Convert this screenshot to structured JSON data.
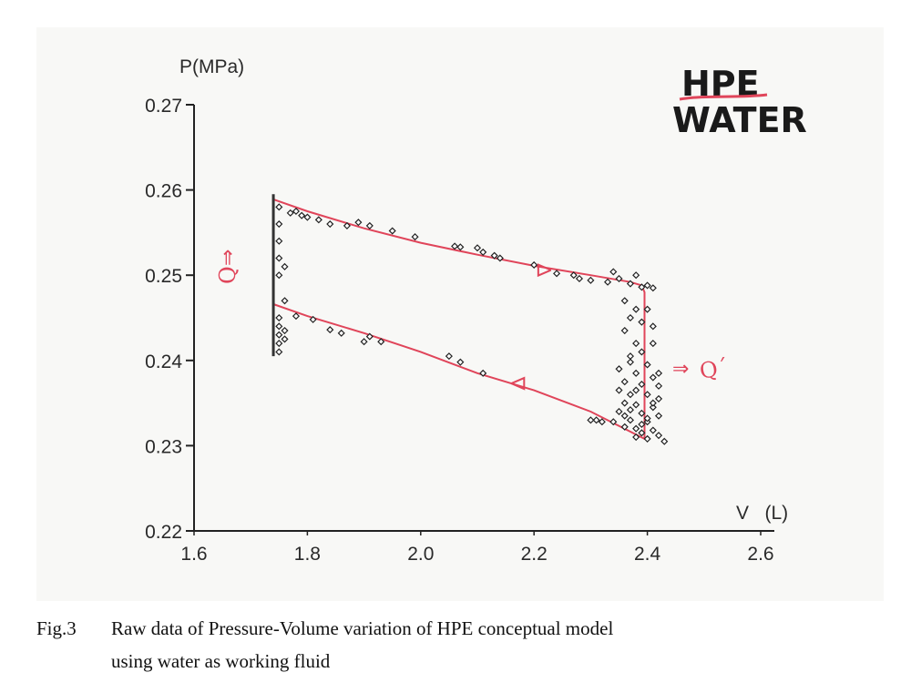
{
  "chart_data": {
    "type": "scatter",
    "title": "",
    "inset_title": [
      "HPE",
      "WATER"
    ],
    "xlabel": "V   (L)",
    "ylabel": "P(MPa)",
    "xlim": [
      1.6,
      2.6
    ],
    "ylim": [
      0.22,
      0.27
    ],
    "xticks": [
      "1.6",
      "1.8",
      "2.0",
      "2.2",
      "2.4",
      "2.6"
    ],
    "yticks": [
      "0.27",
      "0.26",
      "0.25",
      "0.24",
      "0.23",
      "0.22"
    ],
    "heat_in_label": "Q",
    "heat_out_label": "Q´",
    "line_color": "#e0455a",
    "point_color": "#222222",
    "series": [
      {
        "name": "Raw data",
        "points": [
          [
            1.77,
            0.2573
          ],
          [
            1.78,
            0.2575
          ],
          [
            1.79,
            0.257
          ],
          [
            1.8,
            0.2568
          ],
          [
            1.82,
            0.2565
          ],
          [
            1.84,
            0.256
          ],
          [
            1.87,
            0.2558
          ],
          [
            1.89,
            0.2562
          ],
          [
            1.91,
            0.2558
          ],
          [
            1.95,
            0.2552
          ],
          [
            1.99,
            0.2545
          ],
          [
            2.06,
            0.2534
          ],
          [
            2.07,
            0.2533
          ],
          [
            2.1,
            0.2532
          ],
          [
            2.11,
            0.2527
          ],
          [
            2.13,
            0.2523
          ],
          [
            2.14,
            0.252
          ],
          [
            2.2,
            0.2512
          ],
          [
            2.24,
            0.2502
          ],
          [
            2.27,
            0.25
          ],
          [
            2.28,
            0.2496
          ],
          [
            2.3,
            0.2494
          ],
          [
            2.33,
            0.2492
          ],
          [
            2.34,
            0.2504
          ],
          [
            2.35,
            0.2496
          ],
          [
            2.37,
            0.249
          ],
          [
            2.38,
            0.25
          ],
          [
            2.39,
            0.2486
          ],
          [
            2.4,
            0.2488
          ],
          [
            2.41,
            0.2485
          ],
          [
            2.36,
            0.247
          ],
          [
            2.38,
            0.246
          ],
          [
            2.37,
            0.245
          ],
          [
            2.39,
            0.2445
          ],
          [
            2.4,
            0.246
          ],
          [
            2.41,
            0.244
          ],
          [
            2.36,
            0.2435
          ],
          [
            2.38,
            0.242
          ],
          [
            2.39,
            0.241
          ],
          [
            2.41,
            0.242
          ],
          [
            2.37,
            0.2398
          ],
          [
            2.4,
            0.2395
          ],
          [
            2.35,
            0.239
          ],
          [
            2.38,
            0.2385
          ],
          [
            2.41,
            0.238
          ],
          [
            2.36,
            0.2375
          ],
          [
            2.39,
            0.2372
          ],
          [
            2.42,
            0.237
          ],
          [
            2.35,
            0.2365
          ],
          [
            2.37,
            0.236
          ],
          [
            2.4,
            0.236
          ],
          [
            2.42,
            0.2355
          ],
          [
            2.36,
            0.235
          ],
          [
            2.38,
            0.2348
          ],
          [
            2.41,
            0.2345
          ],
          [
            2.35,
            0.234
          ],
          [
            2.39,
            0.2338
          ],
          [
            2.42,
            0.2335
          ],
          [
            2.37,
            0.233
          ],
          [
            2.4,
            0.2328
          ],
          [
            2.36,
            0.2322
          ],
          [
            2.38,
            0.232
          ],
          [
            2.41,
            0.2318
          ],
          [
            2.39,
            0.2315
          ],
          [
            2.42,
            0.2312
          ],
          [
            2.4,
            0.2308
          ],
          [
            2.43,
            0.2305
          ],
          [
            2.38,
            0.231
          ],
          [
            2.34,
            0.2328
          ],
          [
            2.31,
            0.233
          ],
          [
            2.3,
            0.233
          ],
          [
            2.32,
            0.2328
          ],
          [
            2.37,
            0.2342
          ],
          [
            2.4,
            0.2332
          ],
          [
            2.39,
            0.2325
          ],
          [
            2.36,
            0.2335
          ],
          [
            2.41,
            0.235
          ],
          [
            2.38,
            0.2365
          ],
          [
            2.42,
            0.2385
          ],
          [
            2.37,
            0.2405
          ],
          [
            2.11,
            0.2385
          ],
          [
            2.07,
            0.2398
          ],
          [
            2.05,
            0.2405
          ],
          [
            1.93,
            0.2422
          ],
          [
            1.91,
            0.2428
          ],
          [
            1.9,
            0.2422
          ],
          [
            1.86,
            0.2432
          ],
          [
            1.84,
            0.2436
          ],
          [
            1.81,
            0.2448
          ],
          [
            1.78,
            0.2452
          ],
          [
            1.75,
            0.244
          ],
          [
            1.75,
            0.243
          ],
          [
            1.75,
            0.242
          ],
          [
            1.75,
            0.241
          ],
          [
            1.75,
            0.245
          ],
          [
            1.76,
            0.2435
          ],
          [
            1.76,
            0.2425
          ],
          [
            1.75,
            0.25
          ],
          [
            1.75,
            0.252
          ],
          [
            1.75,
            0.254
          ],
          [
            1.75,
            0.256
          ],
          [
            1.75,
            0.258
          ],
          [
            1.76,
            0.251
          ],
          [
            1.76,
            0.247
          ]
        ]
      }
    ],
    "cycle_path": [
      [
        1.74,
        0.2589
      ],
      [
        1.8,
        0.2575
      ],
      [
        1.9,
        0.2555
      ],
      [
        2.0,
        0.2538
      ],
      [
        2.1,
        0.2524
      ],
      [
        2.2,
        0.2511
      ],
      [
        2.3,
        0.25
      ],
      [
        2.37,
        0.2492
      ],
      [
        2.39,
        0.2488
      ],
      [
        2.395,
        0.248
      ],
      [
        2.395,
        0.2308
      ],
      [
        2.3,
        0.234
      ],
      [
        2.2,
        0.2365
      ],
      [
        2.1,
        0.2385
      ],
      [
        2.0,
        0.241
      ],
      [
        1.9,
        0.2432
      ],
      [
        1.8,
        0.2452
      ],
      [
        1.74,
        0.2466
      ]
    ],
    "cycle_arrows": [
      [
        2.23,
        0.2506
      ],
      [
        2.16,
        0.2373
      ]
    ],
    "left_edge_volume": 1.74,
    "left_edge_pressure_range": [
      0.2405,
      0.2595
    ]
  },
  "caption": {
    "label": "Fig.3",
    "line1": "Raw data of Pressure-Volume variation of HPE conceptual model",
    "line2": "using water as working fluid"
  }
}
